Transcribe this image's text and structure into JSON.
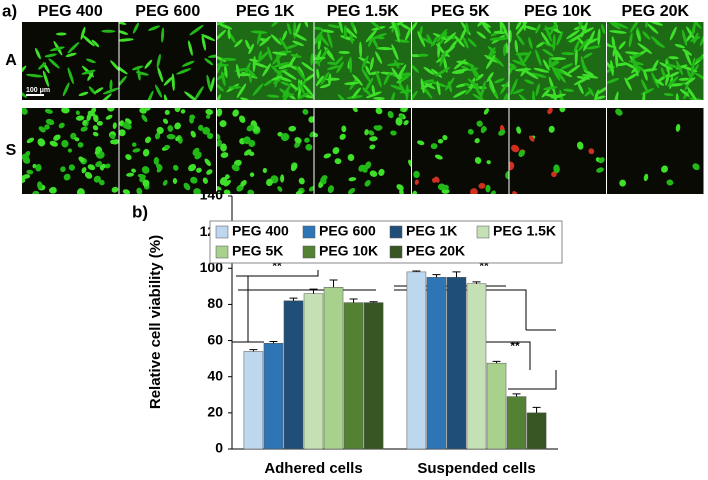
{
  "panel_a": {
    "label": "a)",
    "columns": [
      "PEG 400",
      "PEG 600",
      "PEG 1K",
      "PEG 1.5K",
      "PEG 5K",
      "PEG 10K",
      "PEG 20K"
    ],
    "rows": [
      "A",
      "S"
    ],
    "scale_bar": "100 μm"
  },
  "chart_data": {
    "type": "bar",
    "label": "b)",
    "y_label": "Relative cell viability (%)",
    "categories": [
      "Adhered cells",
      "Suspended cells"
    ],
    "series": [
      {
        "name": "PEG 400",
        "color": "#bdd7ee",
        "values": [
          54,
          98
        ],
        "errors": [
          1,
          0.5
        ]
      },
      {
        "name": "PEG 600",
        "color": "#2e75b6",
        "values": [
          58.5,
          95
        ],
        "errors": [
          1,
          1.5
        ]
      },
      {
        "name": "PEG 1K",
        "color": "#1f4e79",
        "values": [
          82,
          95
        ],
        "errors": [
          1.5,
          3
        ]
      },
      {
        "name": "PEG 1.5K",
        "color": "#c5e0b4",
        "values": [
          86,
          91.5
        ],
        "errors": [
          2.5,
          1
        ]
      },
      {
        "name": "PEG 5K",
        "color": "#a9d18e",
        "values": [
          89.5,
          47.5
        ],
        "errors": [
          4,
          1
        ]
      },
      {
        "name": "PEG 10K",
        "color": "#548235",
        "values": [
          81,
          29
        ],
        "errors": [
          2,
          1.5
        ]
      },
      {
        "name": "PEG 20K",
        "color": "#375623",
        "values": [
          81,
          20
        ],
        "errors": [
          0.5,
          3
        ]
      }
    ],
    "ylim": [
      0,
      140
    ],
    "yticks": [
      0,
      20,
      40,
      60,
      80,
      100,
      120,
      140
    ],
    "annotations": [
      "**",
      "**",
      "**"
    ]
  }
}
